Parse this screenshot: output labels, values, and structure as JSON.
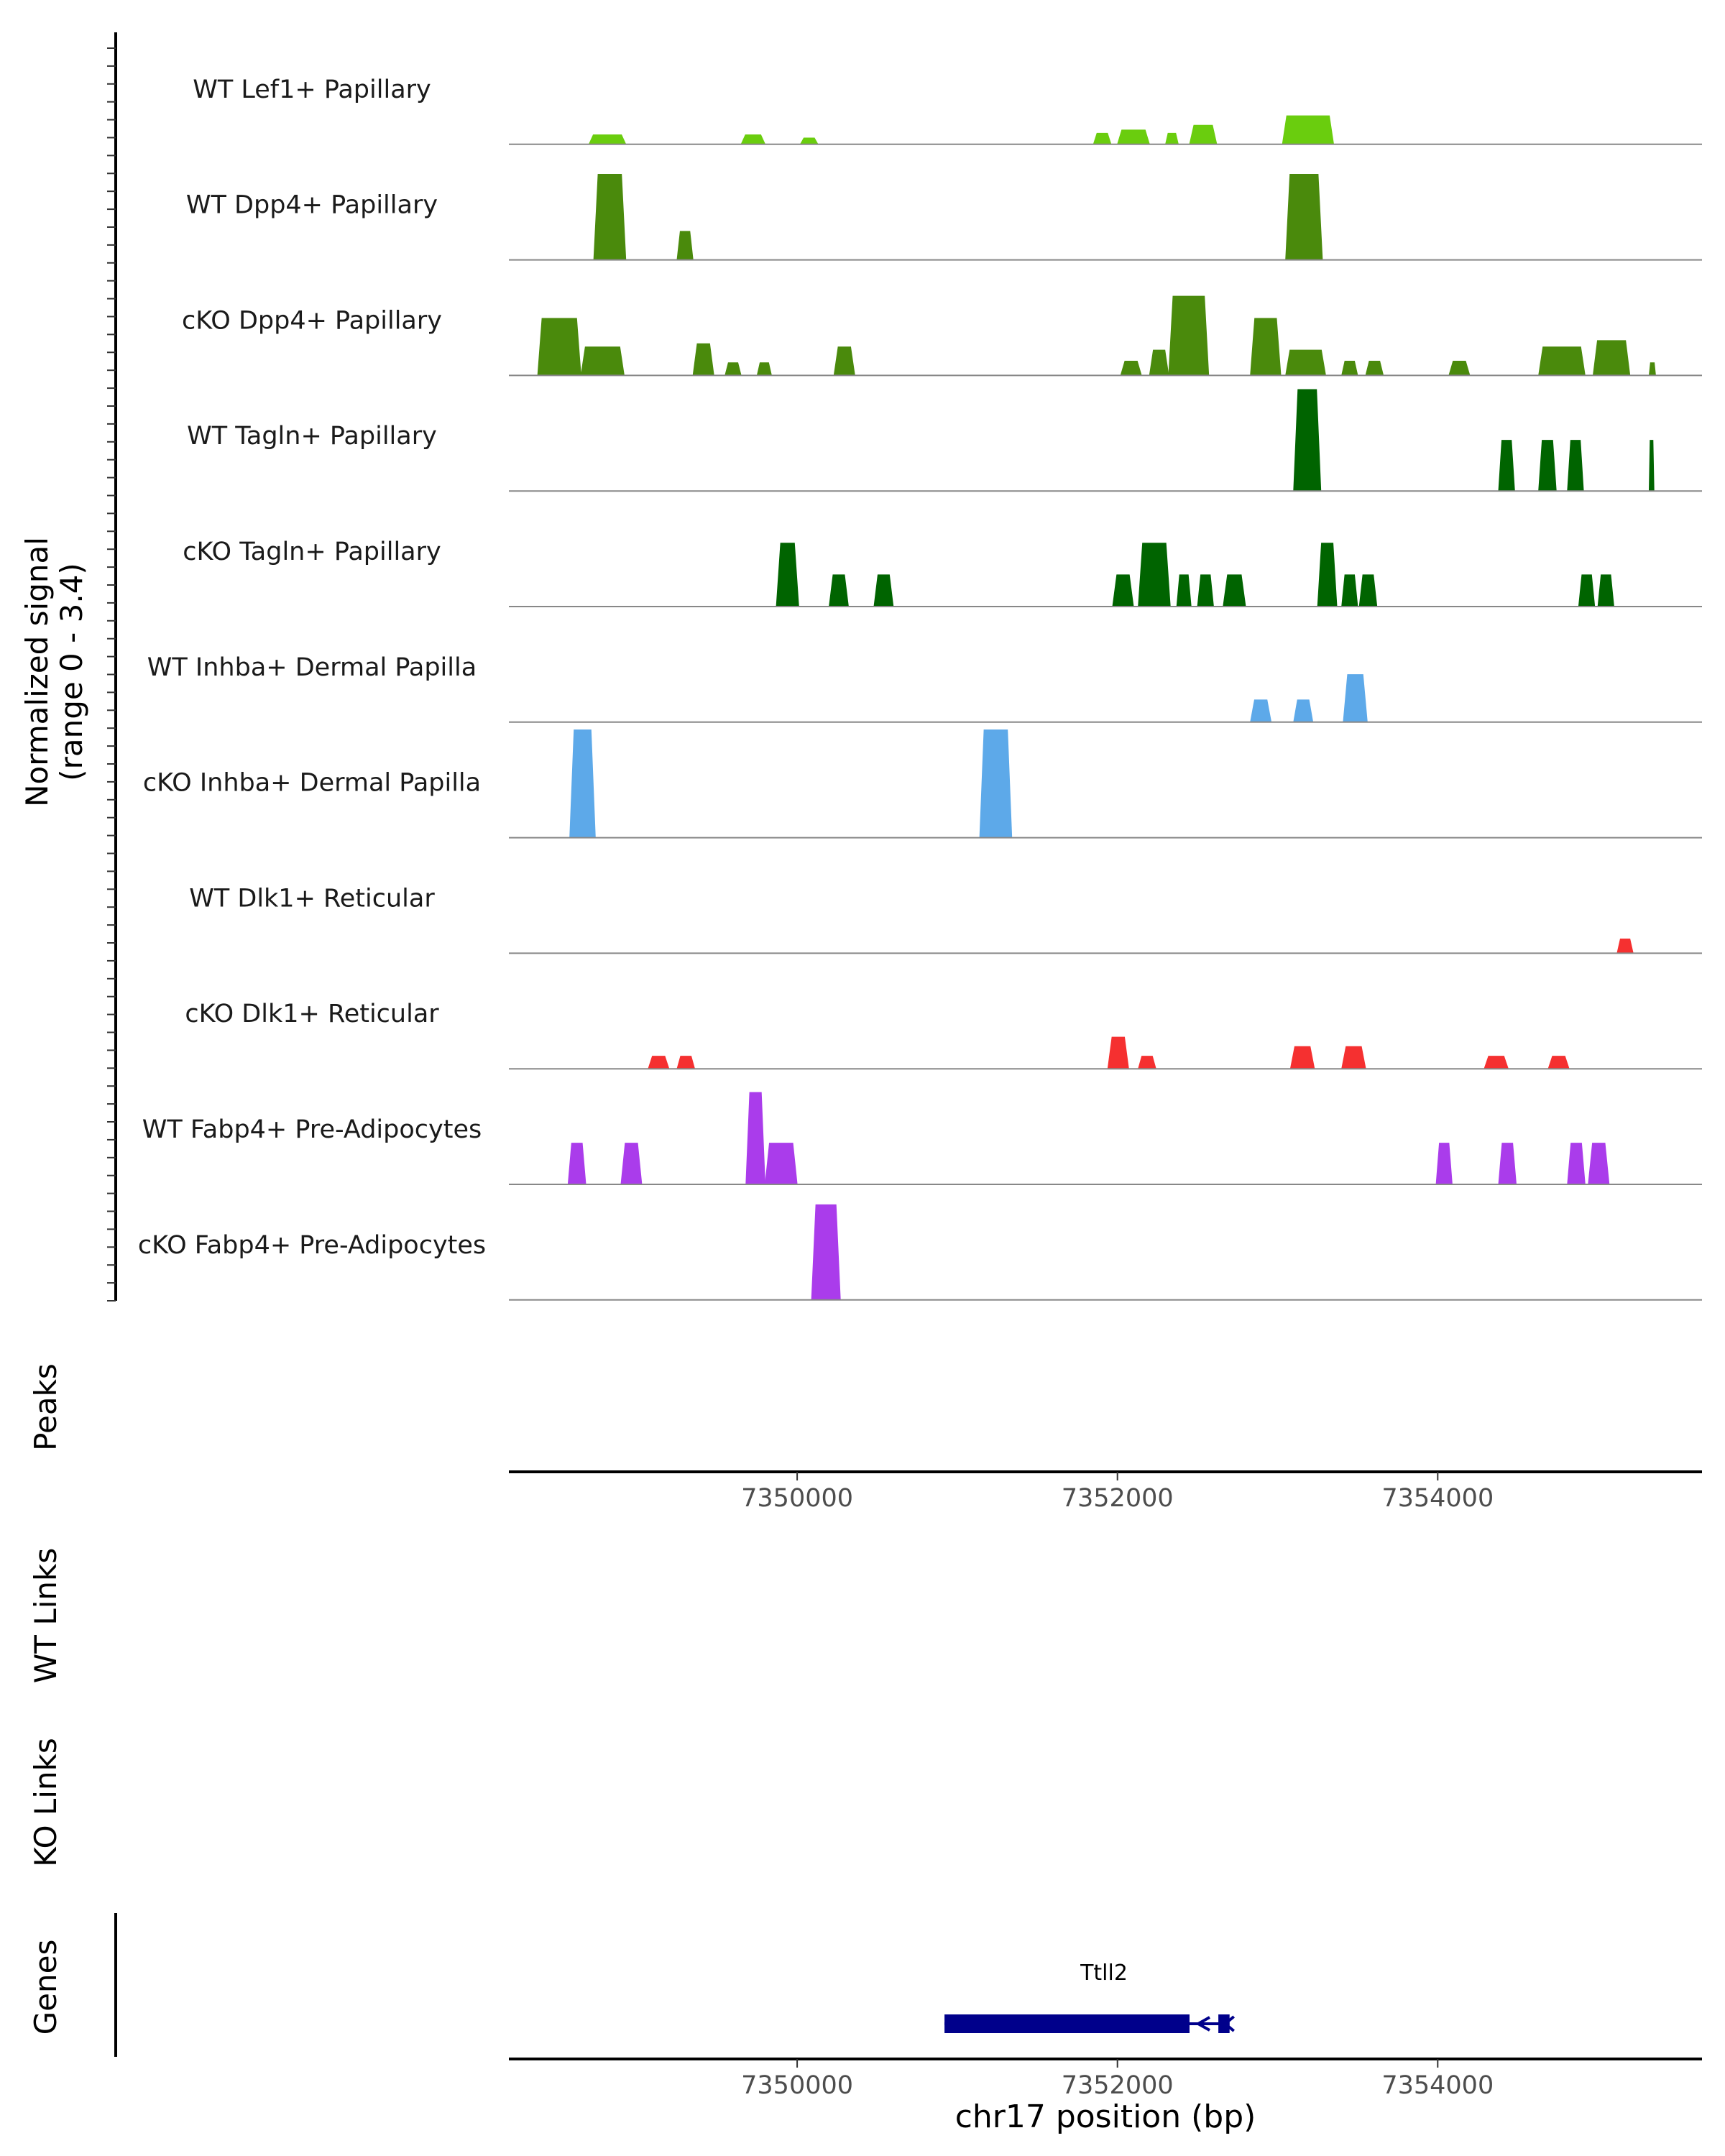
{
  "chart_data": {
    "type": "area",
    "title": "",
    "y_axis_title_line1": "Normalized signal",
    "y_axis_title_line2": "(range 0 - 3.4)",
    "ylim": [
      0,
      3.4
    ],
    "xlim": [
      7348200,
      7355650
    ],
    "x_ticks": [
      7350000,
      7352000,
      7354000
    ],
    "x_tick_labels": [
      "7350000",
      "7352000",
      "7354000"
    ],
    "xlabel": "chr17 position (bp)",
    "peaks_label": "Peaks",
    "wt_links_label": "WT Links",
    "ko_links_label": "KO Links",
    "genes_label": "Genes",
    "colors": {
      "light_green": "#6ACD0E",
      "mid_green": "#4A8A0C",
      "dark_green": "#006400",
      "blue": "#5DA9E9",
      "red": "#F53030",
      "purple": "#AA3CEB",
      "gene": "#00008B"
    },
    "series": [
      {
        "name": "WT Lef1+ Papillary",
        "color": "#6ACD0E",
        "peaks": [
          {
            "s": 7348700,
            "e": 7348930,
            "h": 0.3
          },
          {
            "s": 7349650,
            "e": 7349800,
            "h": 0.3
          },
          {
            "s": 7350020,
            "e": 7350130,
            "h": 0.2
          },
          {
            "s": 7351850,
            "e": 7351960,
            "h": 0.35
          },
          {
            "s": 7352000,
            "e": 7352200,
            "h": 0.45
          },
          {
            "s": 7352300,
            "e": 7352380,
            "h": 0.35
          },
          {
            "s": 7352450,
            "e": 7352620,
            "h": 0.6
          },
          {
            "s": 7353030,
            "e": 7353350,
            "h": 0.9
          }
        ]
      },
      {
        "name": "WT Dpp4+ Papillary",
        "color": "#4A8A0C",
        "peaks": [
          {
            "s": 7348730,
            "e": 7348930,
            "h": 2.7
          },
          {
            "s": 7349250,
            "e": 7349350,
            "h": 0.9
          },
          {
            "s": 7353050,
            "e": 7353280,
            "h": 2.7
          }
        ]
      },
      {
        "name": "cKO Dpp4+ Papillary",
        "color": "#4A8A0C",
        "peaks": [
          {
            "s": 7348380,
            "e": 7348650,
            "h": 1.8
          },
          {
            "s": 7348650,
            "e": 7348920,
            "h": 0.9
          },
          {
            "s": 7349350,
            "e": 7349480,
            "h": 1.0
          },
          {
            "s": 7349550,
            "e": 7349650,
            "h": 0.4
          },
          {
            "s": 7349750,
            "e": 7349840,
            "h": 0.4
          },
          {
            "s": 7350230,
            "e": 7350360,
            "h": 0.9
          },
          {
            "s": 7352020,
            "e": 7352150,
            "h": 0.45
          },
          {
            "s": 7352200,
            "e": 7352320,
            "h": 0.8
          },
          {
            "s": 7352320,
            "e": 7352570,
            "h": 2.5
          },
          {
            "s": 7352830,
            "e": 7353020,
            "h": 1.8
          },
          {
            "s": 7353050,
            "e": 7353300,
            "h": 0.8
          },
          {
            "s": 7353400,
            "e": 7353500,
            "h": 0.45
          },
          {
            "s": 7353550,
            "e": 7353660,
            "h": 0.45
          },
          {
            "s": 7354070,
            "e": 7354200,
            "h": 0.45
          },
          {
            "s": 7354630,
            "e": 7354920,
            "h": 0.9
          },
          {
            "s": 7354970,
            "e": 7355200,
            "h": 1.1
          },
          {
            "s": 7355320,
            "e": 7355360,
            "h": 0.4
          }
        ]
      },
      {
        "name": "WT Tagln+ Papillary",
        "color": "#006400",
        "peaks": [
          {
            "s": 7353100,
            "e": 7353270,
            "h": 3.2
          },
          {
            "s": 7354380,
            "e": 7354480,
            "h": 1.6
          },
          {
            "s": 7354630,
            "e": 7354740,
            "h": 1.6
          },
          {
            "s": 7354810,
            "e": 7354910,
            "h": 1.6
          },
          {
            "s": 7355320,
            "e": 7355350,
            "h": 1.6
          }
        ]
      },
      {
        "name": "cKO Tagln+ Papillary",
        "color": "#006400",
        "peaks": [
          {
            "s": 7349870,
            "e": 7350010,
            "h": 2.0
          },
          {
            "s": 7350200,
            "e": 7350320,
            "h": 1.0
          },
          {
            "s": 7350480,
            "e": 7350600,
            "h": 1.0
          },
          {
            "s": 7351970,
            "e": 7352100,
            "h": 1.0
          },
          {
            "s": 7352130,
            "e": 7352330,
            "h": 2.0
          },
          {
            "s": 7352370,
            "e": 7352460,
            "h": 1.0
          },
          {
            "s": 7352500,
            "e": 7352600,
            "h": 1.0
          },
          {
            "s": 7352660,
            "e": 7352800,
            "h": 1.0
          },
          {
            "s": 7353250,
            "e": 7353370,
            "h": 2.0
          },
          {
            "s": 7353400,
            "e": 7353500,
            "h": 1.0
          },
          {
            "s": 7353510,
            "e": 7353620,
            "h": 1.0
          },
          {
            "s": 7354880,
            "e": 7354980,
            "h": 1.0
          },
          {
            "s": 7355000,
            "e": 7355100,
            "h": 1.0
          }
        ]
      },
      {
        "name": "WT Inhba+ Dermal Papilla",
        "color": "#5DA9E9",
        "peaks": [
          {
            "s": 7352830,
            "e": 7352960,
            "h": 0.7
          },
          {
            "s": 7353100,
            "e": 7353220,
            "h": 0.7
          },
          {
            "s": 7353410,
            "e": 7353560,
            "h": 1.5
          }
        ]
      },
      {
        "name": "cKO Inhba+ Dermal Papilla",
        "color": "#5DA9E9",
        "peaks": [
          {
            "s": 7348580,
            "e": 7348740,
            "h": 3.4
          },
          {
            "s": 7351140,
            "e": 7351340,
            "h": 3.4
          }
        ]
      },
      {
        "name": "WT Dlk1+ Reticular",
        "color": "#F53030",
        "peaks": [
          {
            "s": 7355120,
            "e": 7355220,
            "h": 0.45
          }
        ]
      },
      {
        "name": "cKO Dlk1+ Reticular",
        "color": "#F53030",
        "peaks": [
          {
            "s": 7349070,
            "e": 7349200,
            "h": 0.4
          },
          {
            "s": 7349250,
            "e": 7349360,
            "h": 0.4
          },
          {
            "s": 7351940,
            "e": 7352070,
            "h": 1.0
          },
          {
            "s": 7352130,
            "e": 7352240,
            "h": 0.4
          },
          {
            "s": 7353080,
            "e": 7353230,
            "h": 0.7
          },
          {
            "s": 7353400,
            "e": 7353550,
            "h": 0.7
          },
          {
            "s": 7354290,
            "e": 7354440,
            "h": 0.4
          },
          {
            "s": 7354690,
            "e": 7354820,
            "h": 0.4
          }
        ]
      },
      {
        "name": "WT Fabp4+ Pre-Adipocytes",
        "color": "#AA3CEB",
        "peaks": [
          {
            "s": 7348570,
            "e": 7348680,
            "h": 1.3
          },
          {
            "s": 7348900,
            "e": 7349030,
            "h": 1.3
          },
          {
            "s": 7349680,
            "e": 7349800,
            "h": 2.9
          },
          {
            "s": 7349800,
            "e": 7350000,
            "h": 1.3
          },
          {
            "s": 7353990,
            "e": 7354090,
            "h": 1.3
          },
          {
            "s": 7354380,
            "e": 7354490,
            "h": 1.3
          },
          {
            "s": 7354810,
            "e": 7354920,
            "h": 1.3
          },
          {
            "s": 7354940,
            "e": 7355070,
            "h": 1.3
          }
        ]
      },
      {
        "name": "cKO Fabp4+ Pre-Adipocytes",
        "color": "#AA3CEB",
        "peaks": [
          {
            "s": 7350090,
            "e": 7350270,
            "h": 3.0
          }
        ]
      }
    ],
    "gene": {
      "name": "Ttll2",
      "start": 7350920,
      "end": 7352700,
      "strand": "-",
      "exons": [
        {
          "s": 7350920,
          "e": 7352450
        },
        {
          "s": 7352630,
          "e": 7352700
        }
      ],
      "color": "#00008B"
    }
  }
}
